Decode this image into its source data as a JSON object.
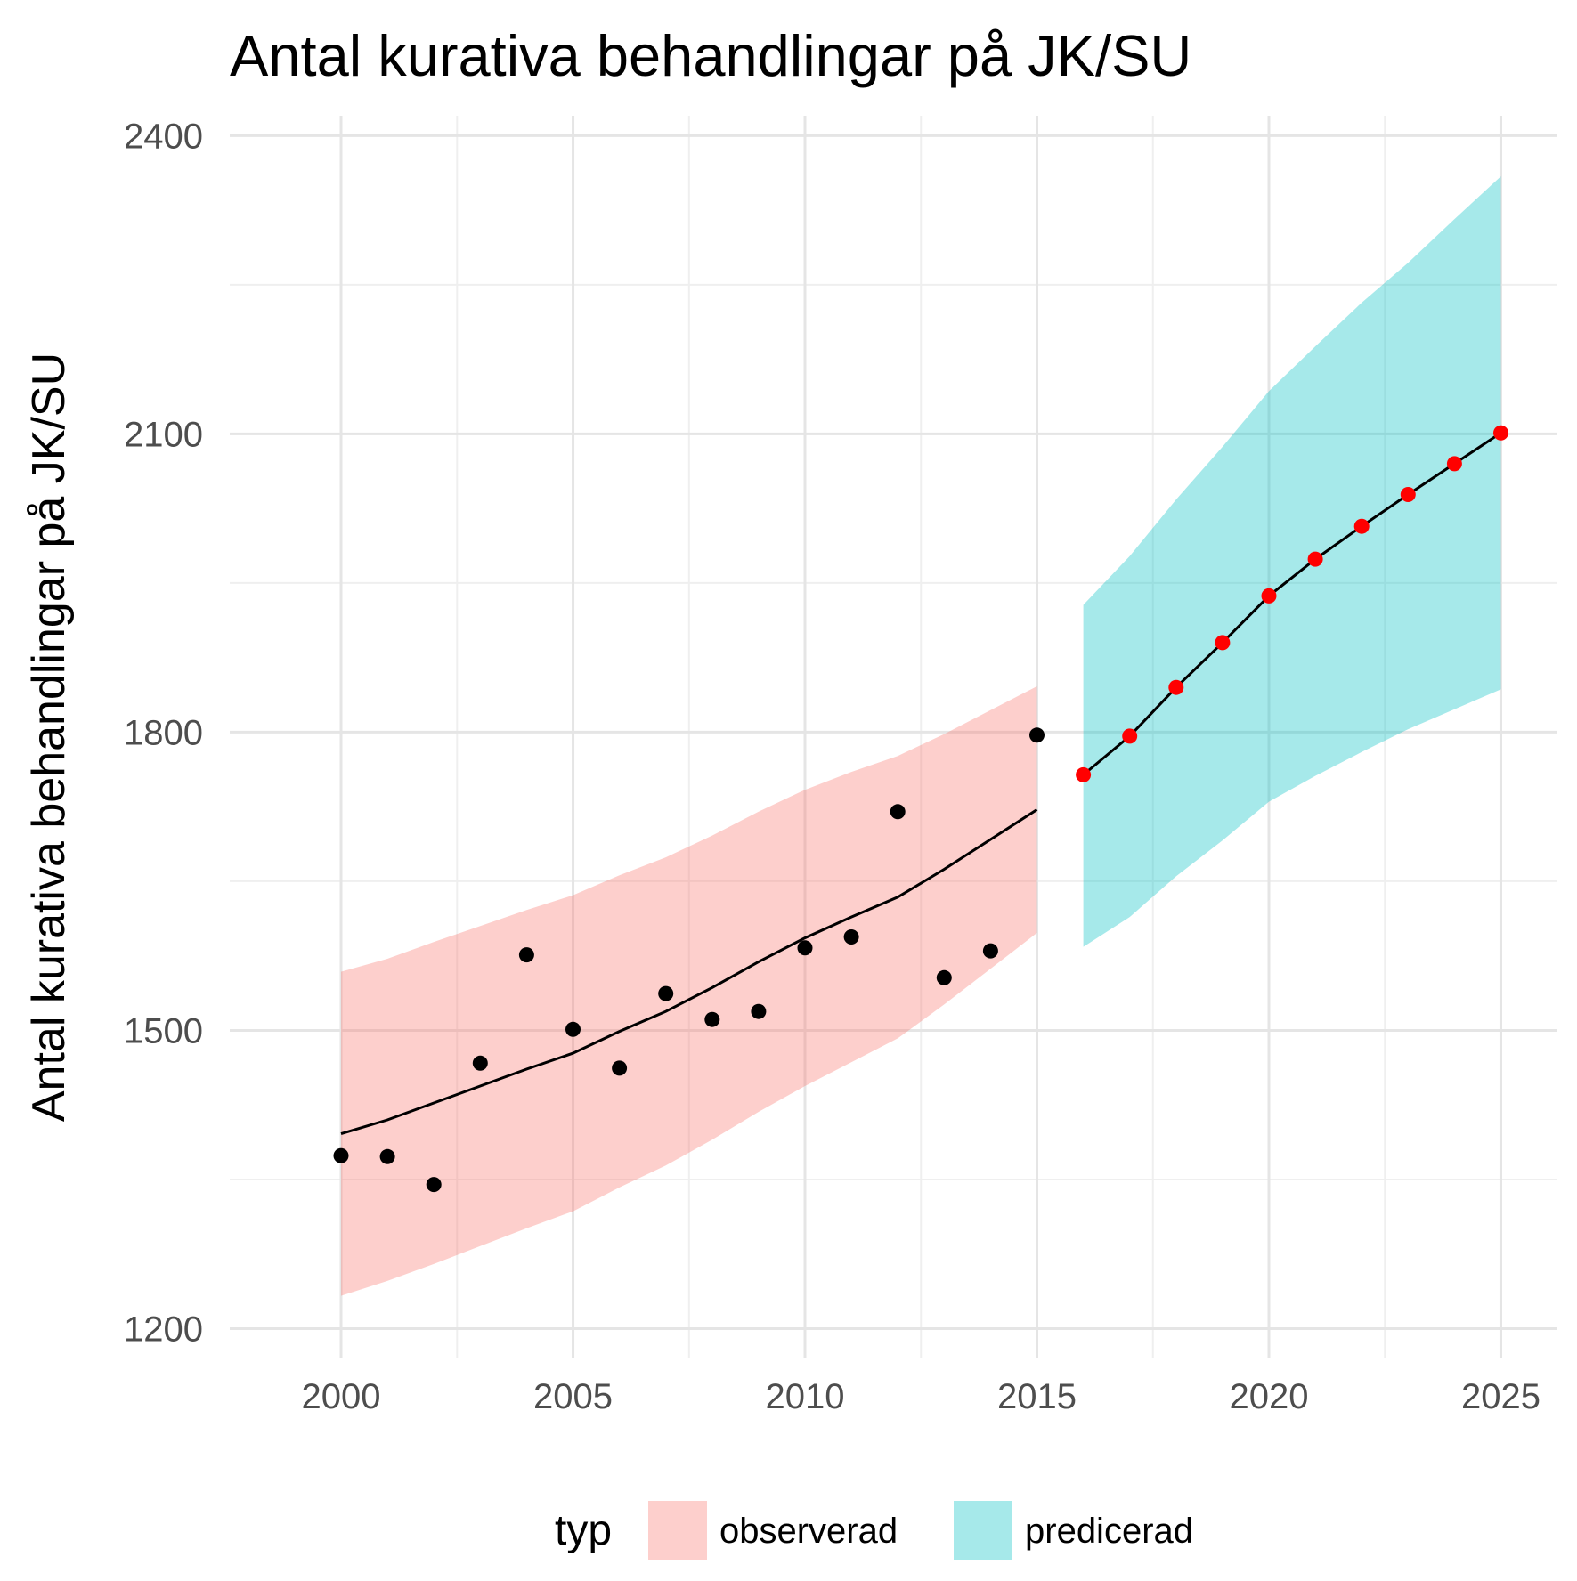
{
  "chart_data": {
    "type": "line",
    "title": "Antal kurativa behandlingar på JK/SU",
    "xlabel": "",
    "ylabel": "Antal kurativa behandlingar på JK/SU",
    "xlim": [
      1997.6,
      2026.2
    ],
    "ylim": [
      1170,
      2420
    ],
    "x_ticks": [
      2000,
      2005,
      2010,
      2015,
      2020,
      2025
    ],
    "y_ticks": [
      1200,
      1500,
      1800,
      2100,
      2400
    ],
    "grid": true,
    "legend": {
      "title": "typ",
      "position": "bottom",
      "entries": [
        {
          "name": "observerad",
          "color": "#F8766D"
        },
        {
          "name": "predicerad",
          "color": "#00BFC4"
        }
      ]
    },
    "series": [
      {
        "name": "observerad",
        "point_color": "#000000",
        "ribbon_color": "#F8766D",
        "x": [
          2000,
          2001,
          2002,
          2003,
          2004,
          2005,
          2006,
          2007,
          2008,
          2009,
          2010,
          2011,
          2012,
          2013,
          2014,
          2015
        ],
        "points": [
          1374,
          1373,
          1345,
          1467,
          1576,
          1501,
          1462,
          1537,
          1511,
          1519,
          1583,
          1594,
          1720,
          1553,
          1580,
          1797
        ],
        "fit": [
          1396,
          1410,
          1427,
          1444,
          1461,
          1477,
          1499,
          1519,
          1543,
          1569,
          1593,
          1614,
          1634,
          1662,
          1692,
          1722
        ],
        "lower": [
          1233,
          1248,
          1265,
          1283,
          1301,
          1318,
          1342,
          1364,
          1390,
          1418,
          1444,
          1468,
          1492,
          1526,
          1562,
          1598
        ],
        "upper": [
          1559,
          1572,
          1589,
          1605,
          1621,
          1636,
          1656,
          1674,
          1696,
          1720,
          1742,
          1760,
          1776,
          1798,
          1822,
          1846
        ]
      },
      {
        "name": "predicerad",
        "point_color": "#FF0000",
        "ribbon_color": "#00BFC4",
        "x": [
          2016,
          2017,
          2018,
          2019,
          2020,
          2021,
          2022,
          2023,
          2024,
          2025
        ],
        "points": [
          1757,
          1796,
          1845,
          1890,
          1937,
          1974,
          2007,
          2039,
          2070,
          2101
        ],
        "fit": [
          1757,
          1796,
          1845,
          1890,
          1937,
          1974,
          2007,
          2039,
          2070,
          2101
        ],
        "lower": [
          1584,
          1614,
          1655,
          1691,
          1730,
          1756,
          1780,
          1803,
          1823,
          1843
        ],
        "upper": [
          1928,
          1977,
          2034,
          2087,
          2143,
          2188,
          2232,
          2272,
          2316,
          2359
        ]
      }
    ]
  }
}
